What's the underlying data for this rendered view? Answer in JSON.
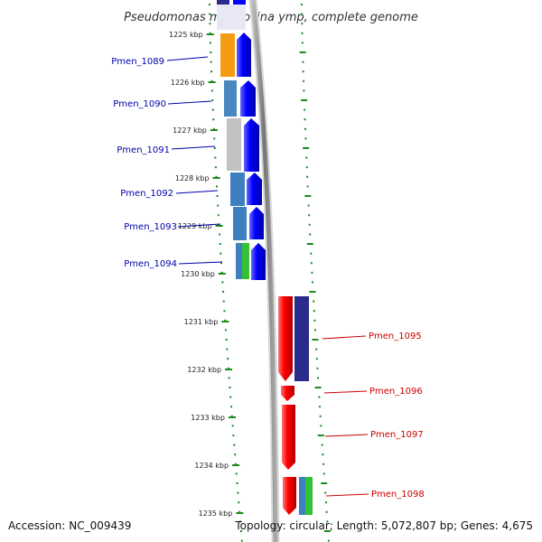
{
  "title": "Pseudomonas mendocina ymp, complete genome",
  "footer": {
    "accession": "Accession: NC_009439",
    "summary": "Topology: circular; Length: 5,072,807 bp; Genes: 4,675"
  },
  "ticks": [
    "1225 kbp",
    "1226 kbp",
    "1227 kbp",
    "1228 kbp",
    "1229 kbp",
    "1230 kbp",
    "1231 kbp",
    "1232 kbp",
    "1233 kbp",
    "1234 kbp",
    "1235 kbp"
  ],
  "genes": [
    {
      "name": "Pmen_1089",
      "strand": "forward",
      "color_cog": "#f39c12"
    },
    {
      "name": "Pmen_1090",
      "strand": "forward",
      "color_cog": "#4a86c0"
    },
    {
      "name": "Pmen_1091",
      "strand": "forward",
      "color_cog": "#c2c2c2"
    },
    {
      "name": "Pmen_1092",
      "strand": "forward",
      "color_cog": "#3d7fbf"
    },
    {
      "name": "Pmen_1093",
      "strand": "forward",
      "color_cog": "#3d7fbf"
    },
    {
      "name": "Pmen_1094",
      "strand": "forward",
      "color_cog": "#3d7fbf"
    },
    {
      "name": "Pmen_1095",
      "strand": "reverse",
      "color_cog": "#2b2b8c"
    },
    {
      "name": "Pmen_1096",
      "strand": "reverse",
      "color_cog": ""
    },
    {
      "name": "Pmen_1097",
      "strand": "reverse",
      "color_cog": ""
    },
    {
      "name": "Pmen_1098",
      "strand": "reverse",
      "color_cog": "#3d7fbf"
    }
  ],
  "colors": {
    "forward_gene": "#0000ff",
    "reverse_gene": "#ff0000",
    "forward_label": "#0000aa",
    "reverse_label": "#cc0000",
    "tick_marks": "#1a8a1a",
    "backbone": "#888888"
  }
}
